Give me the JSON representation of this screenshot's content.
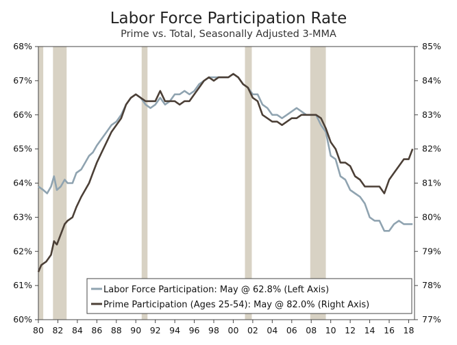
{
  "chart_data": {
    "type": "line",
    "title": "Labor Force Participation Rate",
    "subtitle": "Prime vs. Total, Seasonally Adjusted 3-MMA",
    "x_range": [
      1980,
      2018.6
    ],
    "x_ticks": [
      {
        "value": 1980,
        "label": "80"
      },
      {
        "value": 1982,
        "label": "82"
      },
      {
        "value": 1984,
        "label": "84"
      },
      {
        "value": 1986,
        "label": "86"
      },
      {
        "value": 1988,
        "label": "88"
      },
      {
        "value": 1990,
        "label": "90"
      },
      {
        "value": 1992,
        "label": "92"
      },
      {
        "value": 1994,
        "label": "94"
      },
      {
        "value": 1996,
        "label": "96"
      },
      {
        "value": 1998,
        "label": "98"
      },
      {
        "value": 2000,
        "label": "00"
      },
      {
        "value": 2002,
        "label": "02"
      },
      {
        "value": 2004,
        "label": "04"
      },
      {
        "value": 2006,
        "label": "06"
      },
      {
        "value": 2008,
        "label": "08"
      },
      {
        "value": 2010,
        "label": "10"
      },
      {
        "value": 2012,
        "label": "12"
      },
      {
        "value": 2014,
        "label": "14"
      },
      {
        "value": 2016,
        "label": "16"
      },
      {
        "value": 2018,
        "label": "18"
      }
    ],
    "left_axis": {
      "range": [
        60,
        68
      ],
      "ticks": [
        "60%",
        "61%",
        "62%",
        "63%",
        "64%",
        "65%",
        "66%",
        "67%",
        "68%"
      ]
    },
    "right_axis": {
      "range": [
        77,
        85
      ],
      "ticks": [
        "77%",
        "78%",
        "79%",
        "80%",
        "81%",
        "82%",
        "83%",
        "84%",
        "85%"
      ]
    },
    "recessions": [
      [
        1980.0,
        1980.5
      ],
      [
        1981.5,
        1982.9
      ],
      [
        1990.6,
        1991.2
      ],
      [
        2001.2,
        2001.9
      ],
      [
        2007.9,
        2009.5
      ]
    ],
    "legend": {
      "placement": "bottom-right"
    },
    "series": [
      {
        "name": "Labor Force Participation: May @ 62.8% (Left Axis)",
        "axis": "left",
        "color": "#8fa3b0",
        "points": [
          [
            1980.0,
            63.9
          ],
          [
            1980.5,
            63.8
          ],
          [
            1980.9,
            63.7
          ],
          [
            1981.3,
            63.9
          ],
          [
            1981.6,
            64.2
          ],
          [
            1981.9,
            63.8
          ],
          [
            1982.3,
            63.9
          ],
          [
            1982.7,
            64.1
          ],
          [
            1983.0,
            64.0
          ],
          [
            1983.5,
            64.0
          ],
          [
            1983.9,
            64.3
          ],
          [
            1984.4,
            64.4
          ],
          [
            1984.8,
            64.6
          ],
          [
            1985.2,
            64.8
          ],
          [
            1985.6,
            64.9
          ],
          [
            1986.0,
            65.1
          ],
          [
            1986.5,
            65.3
          ],
          [
            1987.0,
            65.5
          ],
          [
            1987.5,
            65.7
          ],
          [
            1988.0,
            65.8
          ],
          [
            1988.5,
            66.0
          ],
          [
            1989.0,
            66.3
          ],
          [
            1989.5,
            66.5
          ],
          [
            1990.0,
            66.6
          ],
          [
            1990.5,
            66.5
          ],
          [
            1991.0,
            66.3
          ],
          [
            1991.5,
            66.2
          ],
          [
            1992.0,
            66.3
          ],
          [
            1992.5,
            66.5
          ],
          [
            1993.0,
            66.3
          ],
          [
            1993.5,
            66.4
          ],
          [
            1994.0,
            66.6
          ],
          [
            1994.5,
            66.6
          ],
          [
            1995.0,
            66.7
          ],
          [
            1995.5,
            66.6
          ],
          [
            1996.0,
            66.7
          ],
          [
            1996.5,
            66.9
          ],
          [
            1997.0,
            67.0
          ],
          [
            1997.5,
            67.1
          ],
          [
            1998.0,
            67.1
          ],
          [
            1998.5,
            67.1
          ],
          [
            1999.0,
            67.1
          ],
          [
            1999.5,
            67.1
          ],
          [
            2000.0,
            67.2
          ],
          [
            2000.5,
            67.1
          ],
          [
            2001.0,
            66.9
          ],
          [
            2001.5,
            66.8
          ],
          [
            2002.0,
            66.6
          ],
          [
            2002.5,
            66.6
          ],
          [
            2003.0,
            66.3
          ],
          [
            2003.5,
            66.2
          ],
          [
            2004.0,
            66.0
          ],
          [
            2004.5,
            66.0
          ],
          [
            2005.0,
            65.9
          ],
          [
            2005.5,
            66.0
          ],
          [
            2006.0,
            66.1
          ],
          [
            2006.5,
            66.2
          ],
          [
            2007.0,
            66.1
          ],
          [
            2007.5,
            66.0
          ],
          [
            2008.0,
            66.0
          ],
          [
            2008.5,
            66.0
          ],
          [
            2009.0,
            65.7
          ],
          [
            2009.5,
            65.5
          ],
          [
            2010.0,
            64.8
          ],
          [
            2010.5,
            64.7
          ],
          [
            2011.0,
            64.2
          ],
          [
            2011.5,
            64.1
          ],
          [
            2012.0,
            63.8
          ],
          [
            2012.5,
            63.7
          ],
          [
            2013.0,
            63.6
          ],
          [
            2013.5,
            63.4
          ],
          [
            2014.0,
            63.0
          ],
          [
            2014.5,
            62.9
          ],
          [
            2015.0,
            62.9
          ],
          [
            2015.5,
            62.6
          ],
          [
            2016.0,
            62.6
          ],
          [
            2016.5,
            62.8
          ],
          [
            2017.0,
            62.9
          ],
          [
            2017.5,
            62.8
          ],
          [
            2018.0,
            62.8
          ],
          [
            2018.4,
            62.8
          ]
        ]
      },
      {
        "name": "Prime Participation (Ages 25-54): May @ 82.0% (Right Axis)",
        "axis": "right",
        "color": "#4b3f36",
        "points": [
          [
            1980.0,
            78.4
          ],
          [
            1980.3,
            78.6
          ],
          [
            1980.8,
            78.7
          ],
          [
            1981.3,
            78.9
          ],
          [
            1981.6,
            79.3
          ],
          [
            1981.9,
            79.2
          ],
          [
            1982.3,
            79.5
          ],
          [
            1982.7,
            79.8
          ],
          [
            1983.0,
            79.9
          ],
          [
            1983.5,
            80.0
          ],
          [
            1983.9,
            80.3
          ],
          [
            1984.4,
            80.6
          ],
          [
            1984.8,
            80.8
          ],
          [
            1985.2,
            81.0
          ],
          [
            1985.6,
            81.3
          ],
          [
            1986.0,
            81.6
          ],
          [
            1986.5,
            81.9
          ],
          [
            1987.0,
            82.2
          ],
          [
            1987.5,
            82.5
          ],
          [
            1988.0,
            82.7
          ],
          [
            1988.5,
            82.9
          ],
          [
            1989.0,
            83.3
          ],
          [
            1989.5,
            83.5
          ],
          [
            1990.0,
            83.6
          ],
          [
            1990.5,
            83.5
          ],
          [
            1991.0,
            83.4
          ],
          [
            1991.5,
            83.4
          ],
          [
            1992.0,
            83.4
          ],
          [
            1992.5,
            83.7
          ],
          [
            1993.0,
            83.4
          ],
          [
            1993.5,
            83.4
          ],
          [
            1994.0,
            83.4
          ],
          [
            1994.5,
            83.3
          ],
          [
            1995.0,
            83.4
          ],
          [
            1995.5,
            83.4
          ],
          [
            1996.0,
            83.6
          ],
          [
            1996.5,
            83.8
          ],
          [
            1997.0,
            84.0
          ],
          [
            1997.5,
            84.1
          ],
          [
            1998.0,
            84.0
          ],
          [
            1998.5,
            84.1
          ],
          [
            1999.0,
            84.1
          ],
          [
            1999.5,
            84.1
          ],
          [
            2000.0,
            84.2
          ],
          [
            2000.5,
            84.1
          ],
          [
            2001.0,
            83.9
          ],
          [
            2001.5,
            83.8
          ],
          [
            2002.0,
            83.5
          ],
          [
            2002.5,
            83.4
          ],
          [
            2003.0,
            83.0
          ],
          [
            2003.5,
            82.9
          ],
          [
            2004.0,
            82.8
          ],
          [
            2004.5,
            82.8
          ],
          [
            2005.0,
            82.7
          ],
          [
            2005.5,
            82.8
          ],
          [
            2006.0,
            82.9
          ],
          [
            2006.5,
            82.9
          ],
          [
            2007.0,
            83.0
          ],
          [
            2007.5,
            83.0
          ],
          [
            2008.0,
            83.0
          ],
          [
            2008.5,
            83.0
          ],
          [
            2009.0,
            82.9
          ],
          [
            2009.5,
            82.6
          ],
          [
            2010.0,
            82.2
          ],
          [
            2010.5,
            82.0
          ],
          [
            2011.0,
            81.6
          ],
          [
            2011.5,
            81.6
          ],
          [
            2012.0,
            81.5
          ],
          [
            2012.5,
            81.2
          ],
          [
            2013.0,
            81.1
          ],
          [
            2013.5,
            80.9
          ],
          [
            2014.0,
            80.9
          ],
          [
            2014.5,
            80.9
          ],
          [
            2015.0,
            80.9
          ],
          [
            2015.5,
            80.7
          ],
          [
            2016.0,
            81.1
          ],
          [
            2016.5,
            81.3
          ],
          [
            2017.0,
            81.5
          ],
          [
            2017.5,
            81.7
          ],
          [
            2018.0,
            81.7
          ],
          [
            2018.4,
            82.0
          ]
        ]
      }
    ]
  },
  "colors": {
    "recession": "#d8d2c4",
    "axis": "#444444",
    "legend_border": "#444444"
  }
}
